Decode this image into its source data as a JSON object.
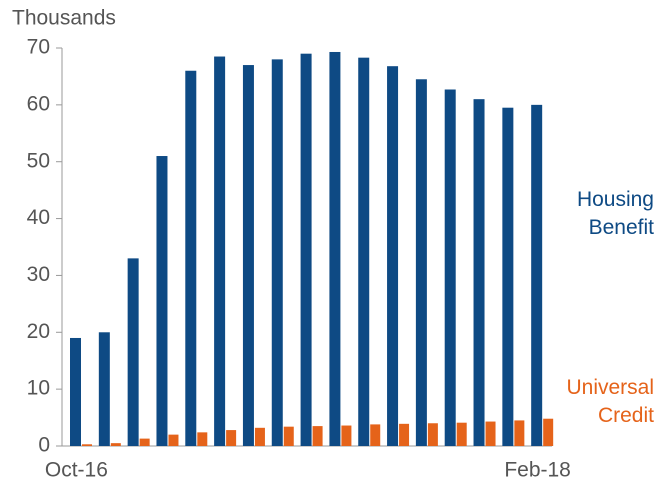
{
  "chart_data": {
    "type": "bar",
    "y_label": "Thousands",
    "categories": [
      "Oct-16",
      null,
      null,
      null,
      null,
      null,
      null,
      null,
      null,
      null,
      null,
      null,
      null,
      null,
      null,
      null,
      "Feb-18"
    ],
    "series": [
      {
        "name": "Housing Benefit",
        "color": "#0e4a84",
        "values": [
          19,
          20,
          33,
          51,
          66,
          68.5,
          67,
          68,
          69,
          69.3,
          68.3,
          66.8,
          64.5,
          62.7,
          61,
          59.5,
          60
        ]
      },
      {
        "name": "Universal Credit",
        "color": "#e5631a",
        "values": [
          0.3,
          0.5,
          1.3,
          2,
          2.4,
          2.8,
          3.2,
          3.4,
          3.5,
          3.6,
          3.8,
          3.9,
          4,
          4.1,
          4.3,
          4.5,
          4.8
        ]
      }
    ],
    "ylim": [
      0,
      70
    ],
    "yticks": [
      0,
      10,
      20,
      30,
      40,
      50,
      60,
      70
    ]
  }
}
